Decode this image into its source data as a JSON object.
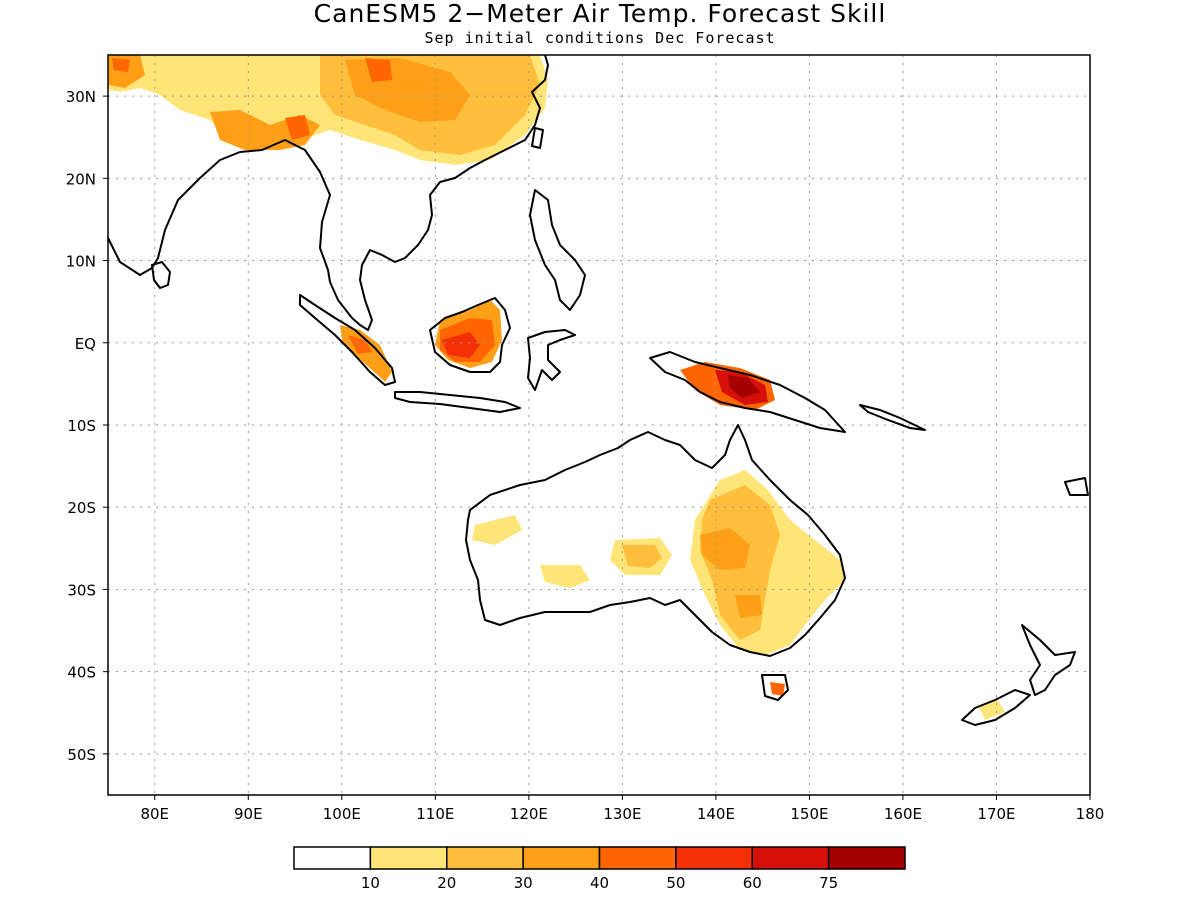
{
  "title": "CanESM5 2−Meter Air Temp. Forecast Skill",
  "subtitle": "Sep initial conditions  Dec Forecast",
  "map": {
    "lon_range": [
      75,
      180
    ],
    "lat_range": [
      -55,
      35
    ],
    "grid": true,
    "lon_ticks": [
      {
        "v": 80,
        "label": "80E"
      },
      {
        "v": 90,
        "label": "90E"
      },
      {
        "v": 100,
        "label": "100E"
      },
      {
        "v": 110,
        "label": "110E"
      },
      {
        "v": 120,
        "label": "120E"
      },
      {
        "v": 130,
        "label": "130E"
      },
      {
        "v": 140,
        "label": "140E"
      },
      {
        "v": 150,
        "label": "150E"
      },
      {
        "v": 160,
        "label": "160E"
      },
      {
        "v": 170,
        "label": "170E"
      },
      {
        "v": 180,
        "label": "180"
      }
    ],
    "lat_ticks": [
      {
        "v": 30,
        "label": "30N"
      },
      {
        "v": 20,
        "label": "20N"
      },
      {
        "v": 10,
        "label": "10N"
      },
      {
        "v": 0,
        "label": "EQ"
      },
      {
        "v": -10,
        "label": "10S"
      },
      {
        "v": -20,
        "label": "20S"
      },
      {
        "v": -30,
        "label": "30S"
      },
      {
        "v": -40,
        "label": "40S"
      },
      {
        "v": -50,
        "label": "50S"
      }
    ]
  },
  "colorbar": {
    "colors": [
      "#ffffff",
      "#ffe477",
      "#ffbe3b",
      "#ff9f18",
      "#ff6602",
      "#f43007",
      "#d61008",
      "#a50000"
    ],
    "labels": [
      "10",
      "20",
      "30",
      "40",
      "50",
      "60",
      "75"
    ]
  }
}
